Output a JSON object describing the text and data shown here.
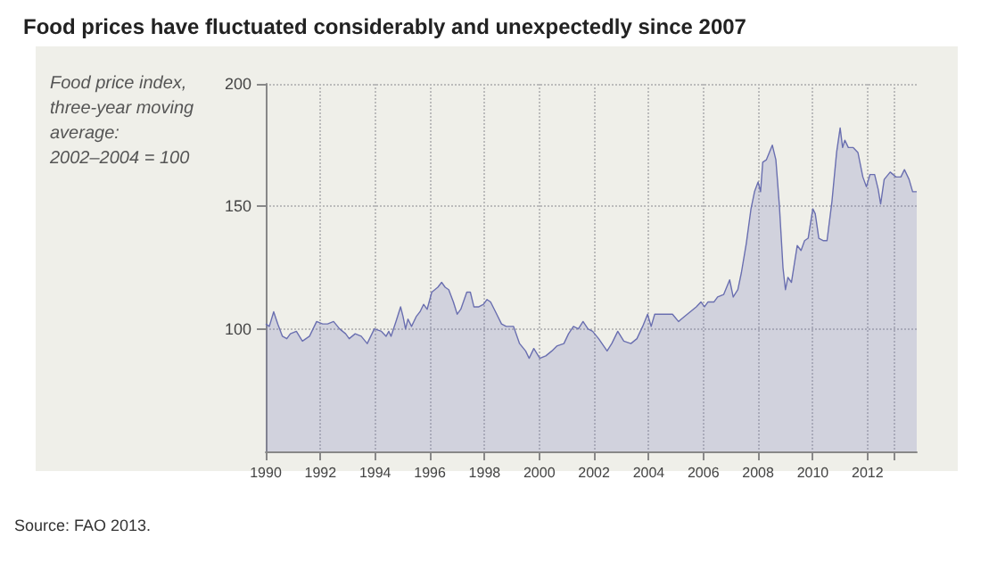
{
  "chart_data": {
    "type": "area",
    "title": "Food prices have fluctuated considerably and unexpectedly since 2007",
    "ylabel": "Food price index, three-year moving average: 2002–2004 = 100",
    "annotations": [
      "Source: FAO 2013."
    ],
    "x": [
      1990,
      1990.13,
      1990.29,
      1990.44,
      1990.61,
      1990.77,
      1990.9,
      1991.12,
      1991.34,
      1991.6,
      1991.86,
      1992.08,
      1992.26,
      1992.48,
      1992.7,
      1992.92,
      1993.05,
      1993.27,
      1993.49,
      1993.71,
      1993.97,
      1994.23,
      1994.4,
      1994.5,
      1994.58,
      1994.76,
      1994.93,
      1995.02,
      1995.11,
      1995.2,
      1995.33,
      1995.5,
      1995.64,
      1995.77,
      1995.9,
      1996.07,
      1996.29,
      1996.43,
      1996.56,
      1996.69,
      1996.86,
      1997,
      1997.13,
      1997.35,
      1997.48,
      1997.61,
      1997.79,
      1997.96,
      1998.09,
      1998.22,
      1998.4,
      1998.62,
      1998.79,
      1999.06,
      1999.28,
      1999.5,
      1999.63,
      1999.8,
      2000.02,
      2000.24,
      2000.46,
      2000.64,
      2000.9,
      2001.07,
      2001.25,
      2001.43,
      2001.6,
      2001.78,
      2001.95,
      2002.17,
      2002.48,
      2002.65,
      2002.87,
      2003.09,
      2003.35,
      2003.57,
      2003.78,
      2003.96,
      2004.09,
      2004.22,
      2004.43,
      2004.65,
      2004.87,
      2005.09,
      2005.3,
      2005.52,
      2005.74,
      2005.91,
      2006.04,
      2006.17,
      2006.39,
      2006.52,
      2006.74,
      2006.96,
      2007.09,
      2007.26,
      2007.39,
      2007.57,
      2007.74,
      2007.87,
      2008,
      2008.09,
      2008.17,
      2008.3,
      2008.52,
      2008.65,
      2008.78,
      2008.91,
      2009,
      2009.09,
      2009.22,
      2009.43,
      2009.57,
      2009.7,
      2009.83,
      2010,
      2010.09,
      2010.22,
      2010.39,
      2010.52,
      2010.7,
      2010.87,
      2011,
      2011.09,
      2011.17,
      2011.3,
      2011.48,
      2011.65,
      2011.83,
      2011.96,
      2012.09,
      2012.26,
      2012.39,
      2012.48,
      2012.61,
      2012.83,
      2013.04,
      2013.22,
      2013.35,
      2013.52,
      2013.65,
      2013.8
    ],
    "series": [
      {
        "color": "#6a6fb0",
        "values": [
          102,
          101,
          107,
          102,
          97,
          96,
          98,
          99,
          95,
          97,
          103,
          102,
          102,
          103,
          100,
          98,
          96,
          98,
          97,
          94,
          100,
          99,
          97,
          99,
          97,
          103,
          109,
          105,
          100,
          104,
          101,
          105,
          107,
          110,
          108,
          115,
          117,
          119,
          117,
          116,
          111,
          106,
          108,
          115,
          115,
          109,
          109,
          110,
          112,
          111,
          107,
          102,
          101,
          101,
          94,
          91,
          88,
          92,
          88,
          89,
          91,
          93,
          94,
          98,
          101,
          100,
          103,
          100,
          99,
          96,
          91,
          94,
          99,
          95,
          94,
          96,
          101,
          106,
          101,
          106,
          106,
          106,
          106,
          103,
          105,
          107,
          109,
          111,
          109,
          111,
          111,
          113,
          114,
          120,
          113,
          116,
          123,
          135,
          149,
          156,
          160,
          156,
          168,
          169,
          175,
          169,
          150,
          125,
          116,
          121,
          119,
          134,
          132,
          136,
          137,
          149,
          147,
          137,
          136,
          136,
          152,
          172,
          182,
          174,
          177,
          174,
          174,
          172,
          162,
          158,
          163,
          163,
          157,
          151,
          161,
          164,
          162,
          162,
          165,
          161,
          156,
          156
        ]
      }
    ],
    "xlim": [
      1990,
      2013.8
    ],
    "xticks": [
      1990,
      1992,
      1994,
      1996,
      1998,
      2000,
      2002,
      2004,
      2006,
      2008,
      2010,
      2012,
      {
        "value": 2013,
        "label": null
      }
    ],
    "ylim": [
      50,
      200
    ],
    "yticks": [
      100,
      150,
      200
    ],
    "grid": true,
    "line_style": "solid",
    "marker": "none"
  }
}
